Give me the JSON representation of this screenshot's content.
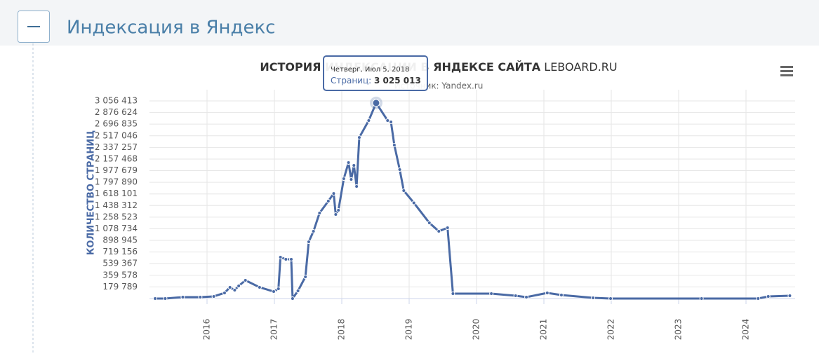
{
  "header": {
    "title": "Индексация в Яндекс"
  },
  "chart_data": {
    "type": "line",
    "title": "ИСТОРИЯ ИНДЕКСАЦИИ В ЯНДЕКСЕ САЙТА",
    "title_site": "LEBOARD.RU",
    "subtitle": "Источник: Yandex.ru",
    "y_label": "КОЛИЧЕСТВО СТРАНИЦ",
    "color": "#4a6aa5",
    "grid": true,
    "x": [
      2015.23,
      2015.38,
      2015.64,
      2015.9,
      2016.1,
      2016.26,
      2016.34,
      2016.41,
      2016.47,
      2016.57,
      2016.78,
      2016.99,
      2017.06,
      2017.09,
      2017.17,
      2017.25,
      2017.27,
      2017.35,
      2017.46,
      2017.51,
      2017.58,
      2017.67,
      2017.8,
      2017.88,
      2017.91,
      2017.95,
      2018.03,
      2018.1,
      2018.14,
      2018.18,
      2018.22,
      2018.26,
      2018.4,
      2018.51,
      2018.68,
      2018.73,
      2018.78,
      2018.86,
      2018.92,
      2019.07,
      2019.3,
      2019.44,
      2019.57,
      2019.65,
      2020.22,
      2020.58,
      2020.74,
      2021.05,
      2021.26,
      2021.73,
      2021.99,
      2023.34,
      2024.18,
      2024.33,
      2024.65
    ],
    "values": [
      0,
      0,
      22000,
      22000,
      33000,
      87000,
      173000,
      130000,
      195000,
      282000,
      174000,
      108000,
      152000,
      639000,
      607000,
      607000,
      0,
      119000,
      336000,
      878000,
      1040000,
      1322000,
      1507000,
      1625000,
      1300000,
      1365000,
      1853000,
      2102000,
      1842000,
      2059000,
      1734000,
      2492000,
      2753000,
      3025013,
      2753000,
      2731000,
      2374000,
      1994000,
      1669000,
      1480000,
      1170000,
      1040000,
      1094000,
      76000,
      76000,
      43000,
      22000,
      87000,
      54000,
      11000,
      0,
      0,
      0,
      33000,
      43000
    ],
    "xlim": [
      2015.146,
      2024.729
    ],
    "xticks": [
      2016,
      2017,
      2018,
      2019,
      2020,
      2021,
      2022,
      2023,
      2024
    ],
    "ylim": [
      0,
      3056413
    ],
    "yticks": [
      {
        "value": 179789,
        "label": "179 789"
      },
      {
        "value": 359578,
        "label": "359 578"
      },
      {
        "value": 539367,
        "label": "539 367"
      },
      {
        "value": 719156,
        "label": "719 156"
      },
      {
        "value": 898945,
        "label": "898 945"
      },
      {
        "value": 1078734,
        "label": "1 078 734"
      },
      {
        "value": 1258523,
        "label": "1 258 523"
      },
      {
        "value": 1438312,
        "label": "1 438 312"
      },
      {
        "value": 1618101,
        "label": "1 618 101"
      },
      {
        "value": 1797890,
        "label": "1 797 890"
      },
      {
        "value": 1977679,
        "label": "1 977 679"
      },
      {
        "value": 2157468,
        "label": "2 157 468"
      },
      {
        "value": 2337257,
        "label": "2 337 257"
      },
      {
        "value": 2517046,
        "label": "2 517 046"
      },
      {
        "value": 2696835,
        "label": "2 696 835"
      },
      {
        "value": 2876624,
        "label": "2 876 624"
      },
      {
        "value": 3056413,
        "label": "3 056 413"
      }
    ],
    "tooltip": {
      "date": "Четверг, Июл 5, 2018",
      "label": "Страниц:",
      "value": "3 025 013"
    }
  }
}
